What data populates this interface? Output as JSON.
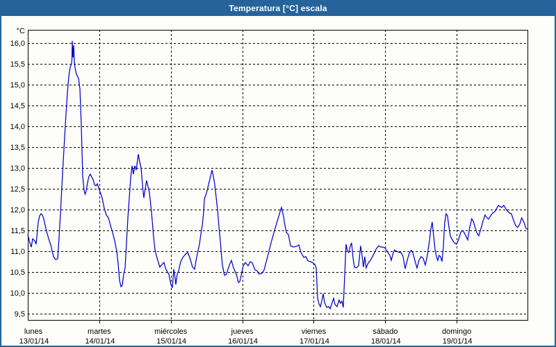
{
  "window": {
    "title": "Temperatura [°C] escala",
    "titlebar_bg": "#25639A",
    "border_color": "#25639A",
    "background": "#FDFDFA"
  },
  "chart_data": {
    "type": "line",
    "title": "Temperatura [°C] escala",
    "grid": "dashed-black",
    "legend": "none",
    "line_color": "#0000CC",
    "y_axis": {
      "unit_label": "°C",
      "min": 9.5,
      "max": 16.0,
      "step": 0.5,
      "tick_labels": [
        "16,0",
        "15,5",
        "15,0",
        "14,5",
        "14,0",
        "13,5",
        "13,0",
        "12,5",
        "12,0",
        "11,5",
        "11,0",
        "10,5",
        "10,0",
        "9,5"
      ]
    },
    "x_axis": {
      "days": [
        {
          "name": "lunes",
          "date": "13/01/14"
        },
        {
          "name": "martes",
          "date": "14/01/14"
        },
        {
          "name": "miércoles",
          "date": "15/01/14"
        },
        {
          "name": "jueves",
          "date": "16/01/14"
        },
        {
          "name": "viernes",
          "date": "17/01/14"
        },
        {
          "name": "sábado",
          "date": "18/01/14"
        },
        {
          "name": "domingo",
          "date": "19/01/14"
        }
      ]
    },
    "series": [
      {
        "name": "Temperatura",
        "x_unit": "days-since-2014-01-13",
        "y_unit": "°C",
        "points": [
          [
            0.0,
            11.4
          ],
          [
            0.029,
            11.2
          ],
          [
            0.049,
            11.1
          ],
          [
            0.068,
            11.3
          ],
          [
            0.097,
            11.25
          ],
          [
            0.117,
            11.17
          ],
          [
            0.146,
            11.7
          ],
          [
            0.165,
            11.85
          ],
          [
            0.185,
            11.9
          ],
          [
            0.204,
            11.87
          ],
          [
            0.224,
            11.77
          ],
          [
            0.262,
            11.48
          ],
          [
            0.292,
            11.3
          ],
          [
            0.321,
            11.15
          ],
          [
            0.36,
            10.87
          ],
          [
            0.389,
            10.8
          ],
          [
            0.418,
            10.82
          ],
          [
            0.437,
            11.3
          ],
          [
            0.457,
            11.9
          ],
          [
            0.476,
            12.55
          ],
          [
            0.496,
            13.15
          ],
          [
            0.515,
            13.75
          ],
          [
            0.535,
            14.3
          ],
          [
            0.554,
            14.8
          ],
          [
            0.574,
            15.2
          ],
          [
            0.593,
            15.42
          ],
          [
            0.612,
            15.5
          ],
          [
            0.617,
            15.6
          ],
          [
            0.622,
            16.05
          ],
          [
            0.632,
            15.65
          ],
          [
            0.642,
            15.95
          ],
          [
            0.651,
            15.55
          ],
          [
            0.661,
            15.4
          ],
          [
            0.681,
            15.25
          ],
          [
            0.7,
            15.18
          ],
          [
            0.71,
            15.15
          ],
          [
            0.729,
            14.9
          ],
          [
            0.749,
            14.0
          ],
          [
            0.768,
            12.8
          ],
          [
            0.788,
            12.45
          ],
          [
            0.802,
            12.37
          ],
          [
            0.817,
            12.45
          ],
          [
            0.836,
            12.65
          ],
          [
            0.856,
            12.8
          ],
          [
            0.875,
            12.85
          ],
          [
            0.894,
            12.78
          ],
          [
            0.914,
            12.72
          ],
          [
            0.933,
            12.6
          ],
          [
            0.953,
            12.57
          ],
          [
            0.972,
            12.62
          ],
          [
            1.001,
            12.47
          ],
          [
            1.04,
            12.28
          ],
          [
            1.069,
            12.03
          ],
          [
            1.099,
            11.87
          ],
          [
            1.128,
            11.8
          ],
          [
            1.157,
            11.62
          ],
          [
            1.186,
            11.45
          ],
          [
            1.215,
            11.25
          ],
          [
            1.244,
            11.0
          ],
          [
            1.264,
            10.7
          ],
          [
            1.283,
            10.3
          ],
          [
            1.303,
            10.15
          ],
          [
            1.322,
            10.18
          ],
          [
            1.342,
            10.45
          ],
          [
            1.361,
            10.6
          ],
          [
            1.381,
            11.2
          ],
          [
            1.4,
            11.8
          ],
          [
            1.42,
            12.3
          ],
          [
            1.439,
            12.75
          ],
          [
            1.458,
            13.05
          ],
          [
            1.478,
            12.85
          ],
          [
            1.497,
            13.05
          ],
          [
            1.517,
            12.95
          ],
          [
            1.546,
            13.33
          ],
          [
            1.565,
            13.15
          ],
          [
            1.585,
            13.0
          ],
          [
            1.604,
            12.6
          ],
          [
            1.623,
            12.28
          ],
          [
            1.643,
            12.5
          ],
          [
            1.662,
            12.7
          ],
          [
            1.682,
            12.55
          ],
          [
            1.701,
            12.4
          ],
          [
            1.721,
            12.1
          ],
          [
            1.74,
            11.75
          ],
          [
            1.759,
            11.35
          ],
          [
            1.779,
            11.03
          ],
          [
            1.798,
            10.9
          ],
          [
            1.818,
            10.78
          ],
          [
            1.847,
            10.62
          ],
          [
            1.876,
            10.68
          ],
          [
            1.905,
            10.73
          ],
          [
            1.925,
            10.6
          ],
          [
            1.944,
            10.53
          ],
          [
            1.973,
            10.45
          ],
          [
            2.003,
            10.2
          ],
          [
            2.022,
            10.12
          ],
          [
            2.042,
            10.57
          ],
          [
            2.061,
            10.35
          ],
          [
            2.071,
            10.2
          ],
          [
            2.09,
            10.45
          ],
          [
            2.11,
            10.53
          ],
          [
            2.139,
            10.75
          ],
          [
            2.168,
            10.85
          ],
          [
            2.207,
            10.93
          ],
          [
            2.236,
            10.97
          ],
          [
            2.265,
            10.85
          ],
          [
            2.304,
            10.62
          ],
          [
            2.333,
            10.57
          ],
          [
            2.362,
            10.85
          ],
          [
            2.401,
            11.17
          ],
          [
            2.431,
            11.53
          ],
          [
            2.44,
            11.6
          ],
          [
            2.46,
            11.95
          ],
          [
            2.47,
            12.25
          ],
          [
            2.49,
            12.35
          ],
          [
            2.508,
            12.45
          ],
          [
            2.528,
            12.6
          ],
          [
            2.557,
            12.8
          ],
          [
            2.576,
            12.95
          ],
          [
            2.596,
            12.8
          ],
          [
            2.615,
            12.6
          ],
          [
            2.635,
            12.3
          ],
          [
            2.654,
            12.0
          ],
          [
            2.674,
            11.6
          ],
          [
            2.693,
            11.25
          ],
          [
            2.712,
            10.85
          ],
          [
            2.722,
            10.67
          ],
          [
            2.751,
            10.42
          ],
          [
            2.78,
            10.45
          ],
          [
            2.819,
            10.67
          ],
          [
            2.849,
            10.78
          ],
          [
            2.878,
            10.6
          ],
          [
            2.917,
            10.45
          ],
          [
            2.946,
            10.25
          ],
          [
            2.965,
            10.27
          ],
          [
            2.995,
            10.5
          ],
          [
            3.014,
            10.65
          ],
          [
            3.043,
            10.73
          ],
          [
            3.082,
            10.65
          ],
          [
            3.111,
            10.75
          ],
          [
            3.14,
            10.72
          ],
          [
            3.179,
            10.55
          ],
          [
            3.208,
            10.53
          ],
          [
            3.237,
            10.45
          ],
          [
            3.276,
            10.47
          ],
          [
            3.306,
            10.55
          ],
          [
            3.354,
            10.87
          ],
          [
            3.403,
            11.2
          ],
          [
            3.451,
            11.5
          ],
          [
            3.5,
            11.78
          ],
          [
            3.529,
            11.95
          ],
          [
            3.549,
            12.05
          ],
          [
            3.578,
            11.83
          ],
          [
            3.597,
            11.62
          ],
          [
            3.617,
            11.45
          ],
          [
            3.646,
            11.4
          ],
          [
            3.675,
            11.13
          ],
          [
            3.714,
            11.1
          ],
          [
            3.762,
            11.12
          ],
          [
            3.792,
            11.15
          ],
          [
            3.821,
            10.97
          ],
          [
            3.86,
            10.85
          ],
          [
            3.889,
            10.87
          ],
          [
            3.918,
            10.77
          ],
          [
            3.957,
            10.75
          ],
          [
            3.986,
            10.72
          ],
          [
            4.015,
            10.68
          ],
          [
            4.035,
            10.6
          ],
          [
            4.054,
            9.87
          ],
          [
            4.074,
            9.73
          ],
          [
            4.093,
            9.67
          ],
          [
            4.112,
            9.8
          ],
          [
            4.132,
            9.98
          ],
          [
            4.151,
            9.77
          ],
          [
            4.18,
            9.65
          ],
          [
            4.21,
            9.67
          ],
          [
            4.229,
            9.62
          ],
          [
            4.258,
            9.77
          ],
          [
            4.277,
            9.87
          ],
          [
            4.297,
            9.72
          ],
          [
            4.326,
            9.67
          ],
          [
            4.355,
            9.83
          ],
          [
            4.374,
            9.75
          ],
          [
            4.394,
            9.8
          ],
          [
            4.413,
            9.65
          ],
          [
            4.432,
            10.4
          ],
          [
            4.452,
            11.17
          ],
          [
            4.471,
            11.0
          ],
          [
            4.491,
            10.97
          ],
          [
            4.51,
            11.12
          ],
          [
            4.53,
            11.2
          ],
          [
            4.549,
            10.85
          ],
          [
            4.568,
            10.62
          ],
          [
            4.597,
            10.6
          ],
          [
            4.627,
            10.65
          ],
          [
            4.656,
            11.13
          ],
          [
            4.675,
            10.9
          ],
          [
            4.695,
            10.62
          ],
          [
            4.714,
            10.87
          ],
          [
            4.733,
            10.6
          ],
          [
            4.763,
            10.72
          ],
          [
            4.792,
            10.78
          ],
          [
            4.821,
            10.87
          ],
          [
            4.85,
            10.97
          ],
          [
            4.879,
            11.07
          ],
          [
            4.908,
            11.13
          ],
          [
            4.938,
            11.1
          ],
          [
            4.967,
            11.1
          ],
          [
            4.996,
            11.08
          ],
          [
            5.035,
            10.97
          ],
          [
            5.064,
            10.9
          ],
          [
            5.084,
            10.78
          ],
          [
            5.113,
            10.97
          ],
          [
            5.132,
            11.03
          ],
          [
            5.161,
            11.0
          ],
          [
            5.19,
            10.97
          ],
          [
            5.219,
            10.97
          ],
          [
            5.249,
            10.88
          ],
          [
            5.278,
            10.58
          ],
          [
            5.307,
            10.78
          ],
          [
            5.336,
            10.95
          ],
          [
            5.365,
            11.02
          ],
          [
            5.385,
            10.97
          ],
          [
            5.414,
            10.78
          ],
          [
            5.443,
            10.6
          ],
          [
            5.472,
            10.78
          ],
          [
            5.501,
            10.87
          ],
          [
            5.531,
            10.83
          ],
          [
            5.56,
            10.67
          ],
          [
            5.589,
            10.9
          ],
          [
            5.618,
            11.25
          ],
          [
            5.638,
            11.53
          ],
          [
            5.657,
            11.7
          ],
          [
            5.677,
            11.37
          ],
          [
            5.696,
            11.05
          ],
          [
            5.715,
            10.88
          ],
          [
            5.735,
            10.78
          ],
          [
            5.754,
            10.9
          ],
          [
            5.774,
            10.87
          ],
          [
            5.793,
            10.75
          ],
          [
            5.813,
            11.1
          ],
          [
            5.832,
            11.7
          ],
          [
            5.852,
            11.9
          ],
          [
            5.871,
            11.85
          ],
          [
            5.89,
            11.6
          ],
          [
            5.91,
            11.37
          ],
          [
            5.939,
            11.27
          ],
          [
            5.968,
            11.2
          ],
          [
            5.997,
            11.17
          ],
          [
            6.027,
            11.28
          ],
          [
            6.056,
            11.45
          ],
          [
            6.075,
            11.5
          ],
          [
            6.104,
            11.45
          ],
          [
            6.133,
            11.35
          ],
          [
            6.153,
            11.27
          ],
          [
            6.182,
            11.58
          ],
          [
            6.211,
            11.78
          ],
          [
            6.231,
            11.72
          ],
          [
            6.25,
            11.62
          ],
          [
            6.279,
            11.45
          ],
          [
            6.308,
            11.37
          ],
          [
            6.337,
            11.53
          ],
          [
            6.367,
            11.72
          ],
          [
            6.396,
            11.87
          ],
          [
            6.415,
            11.82
          ],
          [
            6.444,
            11.77
          ],
          [
            6.474,
            11.85
          ],
          [
            6.503,
            11.92
          ],
          [
            6.532,
            11.95
          ],
          [
            6.561,
            12.03
          ],
          [
            6.581,
            12.1
          ],
          [
            6.6,
            12.08
          ],
          [
            6.629,
            12.05
          ],
          [
            6.658,
            12.1
          ],
          [
            6.688,
            12.02
          ],
          [
            6.707,
            11.97
          ],
          [
            6.736,
            11.92
          ],
          [
            6.765,
            11.9
          ],
          [
            6.794,
            11.75
          ],
          [
            6.823,
            11.62
          ],
          [
            6.852,
            11.57
          ],
          [
            6.881,
            11.65
          ],
          [
            6.91,
            11.8
          ],
          [
            6.94,
            11.7
          ],
          [
            6.969,
            11.55
          ],
          [
            6.998,
            11.52
          ]
        ]
      }
    ]
  }
}
